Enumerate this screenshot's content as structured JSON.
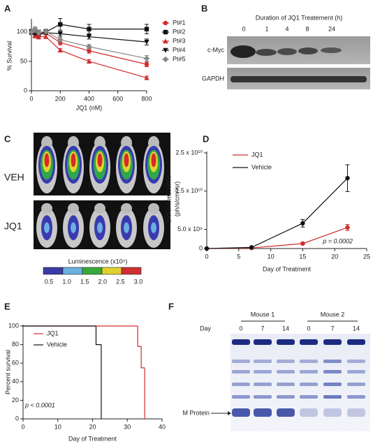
{
  "panel_labels": [
    "A",
    "B",
    "C",
    "D",
    "E",
    "F"
  ],
  "chart_data": [
    {
      "type": "line",
      "x_label": "JQ1 (nM)",
      "y_label": "% Survival",
      "x": [
        0,
        25,
        50,
        100,
        200,
        400,
        800
      ],
      "xlim": [
        0,
        800
      ],
      "xticks": [
        0,
        200,
        400,
        600,
        800
      ],
      "ylim": [
        0,
        120
      ],
      "yticks": [
        0,
        50,
        100
      ],
      "legend": "right",
      "series": [
        {
          "name": "Pt#1",
          "color": "#d02b2b",
          "marker": "circle",
          "values": [
            100,
            97,
            95,
            98,
            82,
            68,
            45
          ],
          "errors": [
            3,
            4,
            3,
            3,
            4,
            4,
            4
          ]
        },
        {
          "name": "Pt#2",
          "color": "#111111",
          "marker": "square",
          "values": [
            100,
            102,
            96,
            100,
            113,
            105,
            105
          ],
          "errors": [
            4,
            5,
            4,
            4,
            10,
            8,
            8
          ]
        },
        {
          "name": "Pt#3",
          "color": "#d02b2b",
          "marker": "triangle",
          "values": [
            100,
            94,
            92,
            92,
            69,
            50,
            22
          ],
          "errors": [
            3,
            4,
            4,
            3,
            3,
            3,
            3
          ]
        },
        {
          "name": "Pt#4",
          "color": "#111111",
          "marker": "triangle-down",
          "values": [
            100,
            98,
            100,
            99,
            97,
            92,
            83
          ],
          "errors": [
            3,
            3,
            3,
            3,
            4,
            4,
            5
          ]
        },
        {
          "name": "Pt#5",
          "color": "#888888",
          "marker": "diamond",
          "values": [
            100,
            104,
            99,
            101,
            87,
            75,
            55
          ],
          "errors": [
            5,
            5,
            4,
            4,
            4,
            4,
            5
          ]
        }
      ]
    },
    {
      "type": "line",
      "x_label": "Day of Treatment",
      "y_label": [
        "Bioluminescence",
        "(ph/s/cm²/sr)"
      ],
      "x": [
        0,
        7,
        15,
        22
      ],
      "xlim": [
        0,
        25
      ],
      "xticks": [
        0,
        5,
        10,
        15,
        20,
        25
      ],
      "ylim": [
        0,
        25000000000
      ],
      "yticks": [
        0,
        {
          "value": 5000000000,
          "label": "5.0 x 10⁹"
        },
        {
          "value": 15000000000,
          "label": "1.5 x 10¹⁰"
        },
        {
          "value": 25000000000,
          "label": "2.5 x 10¹⁰"
        }
      ],
      "legend": "upper left",
      "annotation": "p = 0.0002",
      "series": [
        {
          "name": "JQ1",
          "color": "#d02b2b",
          "marker": "circle",
          "values": [
            0,
            150000000,
            1300000000,
            5500000000
          ],
          "errors": [
            0,
            0,
            300000000,
            800000000
          ]
        },
        {
          "name": "Vehicle",
          "color": "#111111",
          "marker": "circle",
          "values": [
            0,
            300000000,
            6600000000,
            18400000000
          ],
          "errors": [
            0,
            0,
            1000000000,
            3500000000
          ]
        }
      ]
    },
    {
      "type": "step",
      "x_label": "Day of Treatment",
      "y_label": "Percent survival",
      "xlim": [
        0,
        40
      ],
      "xticks": [
        0,
        10,
        20,
        30,
        40
      ],
      "ylim": [
        0,
        100
      ],
      "yticks": [
        0,
        20,
        40,
        60,
        80,
        100
      ],
      "legend": "upper left",
      "annotation": "p < 0.0001",
      "series": [
        {
          "name": "JQ1",
          "color": "#d02b2b",
          "x": [
            0,
            33,
            34,
            35
          ],
          "values": [
            100,
            78,
            55,
            0
          ]
        },
        {
          "name": "Vehicle",
          "color": "#111111",
          "x": [
            0,
            21,
            22.5
          ],
          "values": [
            100,
            80,
            0
          ]
        }
      ]
    }
  ],
  "panel_b": {
    "title": "Duration of JQ1 Treatement (h)",
    "lanes": [
      "0",
      "1",
      "4",
      "8",
      "24"
    ],
    "rows": [
      "c-Myc",
      "GAPDH"
    ]
  },
  "panel_c": {
    "rows": [
      "VEH",
      "JQ1"
    ],
    "colorbar_title": "Luminescence (x10⁶)",
    "colorbar_ticks": [
      "0.5",
      "1.0",
      "1.5",
      "2.0",
      "2.5",
      "3.0"
    ]
  },
  "panel_f": {
    "groups": [
      "Mouse 1",
      "Mouse 2"
    ],
    "day_label": "Day",
    "lanes": [
      "0",
      "7",
      "14",
      "0",
      "7",
      "14"
    ],
    "marker_label": "M Protein"
  }
}
